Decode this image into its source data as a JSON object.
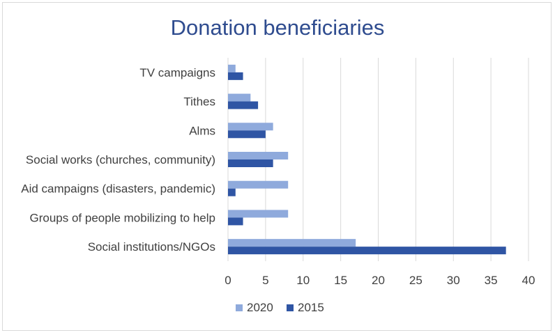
{
  "chart_data": {
    "type": "bar",
    "orientation": "horizontal",
    "title": "Donation beneficiaries",
    "xlabel": "",
    "ylabel": "",
    "xlim": [
      0,
      40
    ],
    "x_ticks": [
      0,
      5,
      10,
      15,
      20,
      25,
      30,
      35,
      40
    ],
    "grid": true,
    "legend_position": "bottom",
    "categories": [
      "TV campaigns",
      "Tithes",
      "Alms",
      "Social works (churches, community)",
      "Aid campaigns (disasters, pandemic)",
      "Groups of people mobilizing to help",
      "Social institutions/NGOs"
    ],
    "series": [
      {
        "name": "2020",
        "color": "#8faadc",
        "values": [
          1,
          3,
          6,
          8,
          8,
          8,
          17
        ]
      },
      {
        "name": "2015",
        "color": "#2f55a4",
        "values": [
          2,
          4,
          5,
          6,
          1,
          2,
          37
        ]
      }
    ]
  }
}
